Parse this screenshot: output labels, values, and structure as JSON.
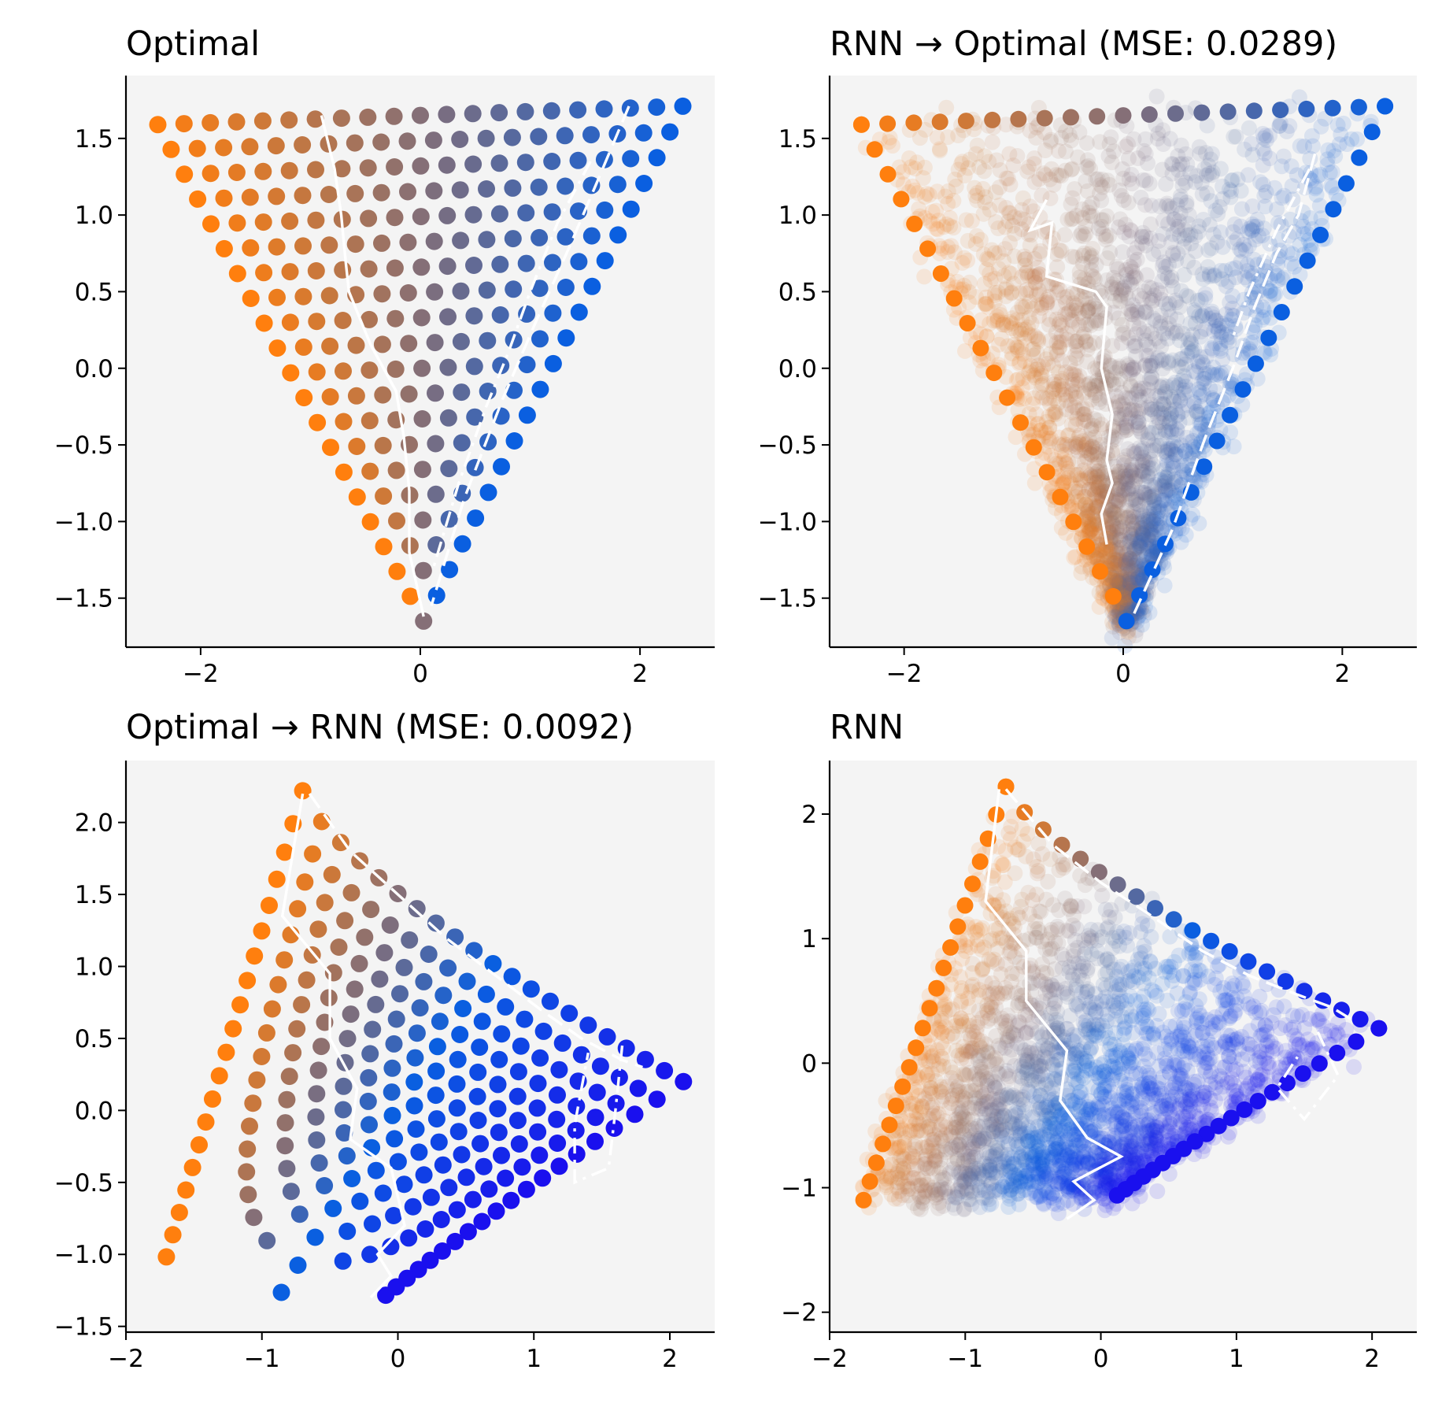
{
  "chart_data": [
    {
      "id": "optimal",
      "type": "scatter",
      "title": "Optimal",
      "xlabel": "",
      "ylabel": "",
      "xlim": [
        -2.68,
        2.68
      ],
      "ylim": [
        -1.82,
        1.91
      ],
      "xticks": [
        -2,
        0,
        2
      ],
      "xtick_labels": [
        "−2",
        "0",
        "2"
      ],
      "yticks": [
        -1.5,
        -1.0,
        -0.5,
        0.0,
        0.5,
        1.0,
        1.5
      ],
      "ytick_labels": [
        "−1.5",
        "−1.0",
        "−0.5",
        "0.0",
        "0.5",
        "1.0",
        "1.5"
      ],
      "grid": false,
      "color_endpoints": [
        "#ff7f0e",
        "#0a5fe0"
      ],
      "mapping": "triangle",
      "scatter_style": "grid",
      "grid_steps": 20,
      "triangle_vertices": {
        "top_left": [
          -2.39,
          1.59
        ],
        "top_right": [
          2.39,
          1.71
        ],
        "bottom": [
          0.03,
          -1.65
        ]
      },
      "solid_path": [
        [
          -0.9,
          1.65
        ],
        [
          -0.78,
          1.3
        ],
        [
          -0.72,
          1.0
        ],
        [
          -0.68,
          0.7
        ],
        [
          -0.65,
          0.5
        ],
        [
          -0.45,
          0.15
        ],
        [
          -0.22,
          -0.15
        ],
        [
          -0.15,
          -0.45
        ],
        [
          -0.1,
          -0.8
        ],
        [
          -0.1,
          -1.2
        ],
        [
          0.03,
          -1.62
        ]
      ],
      "dashed_path": [
        [
          1.9,
          1.71
        ],
        [
          1.6,
          1.2
        ],
        [
          1.35,
          0.78
        ],
        [
          1.05,
          0.3
        ],
        [
          0.75,
          -0.2
        ],
        [
          0.4,
          -0.85
        ],
        [
          0.1,
          -1.55
        ]
      ],
      "dashdot_path": [
        [
          1.55,
          1.35
        ],
        [
          1.25,
          0.95
        ],
        [
          1.0,
          0.5
        ],
        [
          0.8,
          0.1
        ],
        [
          0.6,
          -0.25
        ],
        [
          0.35,
          -0.75
        ],
        [
          0.12,
          -1.3
        ]
      ]
    },
    {
      "id": "rnn-to-optimal",
      "type": "scatter",
      "title": "RNN → Optimal (MSE: 0.0289)",
      "mse": 0.0289,
      "xlabel": "",
      "ylabel": "",
      "xlim": [
        -2.68,
        2.68
      ],
      "ylim": [
        -1.82,
        1.91
      ],
      "xticks": [
        -2,
        0,
        2
      ],
      "xtick_labels": [
        "−2",
        "0",
        "2"
      ],
      "yticks": [
        -1.5,
        -1.0,
        -0.5,
        0.0,
        0.5,
        1.0,
        1.5
      ],
      "ytick_labels": [
        "−1.5",
        "−1.0",
        "−0.5",
        "0.0",
        "0.5",
        "1.0",
        "1.5"
      ],
      "grid": false,
      "color_endpoints": [
        "#ff7f0e",
        "#0a5fe0"
      ],
      "mapping": "triangle",
      "scatter_style": "edges_and_cloud",
      "grid_steps": 20,
      "triangle_vertices": {
        "top_left": [
          -2.39,
          1.59
        ],
        "top_right": [
          2.39,
          1.71
        ],
        "bottom": [
          0.03,
          -1.65
        ]
      },
      "solid_path": [
        [
          -0.7,
          1.1
        ],
        [
          -0.85,
          0.9
        ],
        [
          -0.65,
          0.95
        ],
        [
          -0.7,
          0.6
        ],
        [
          -0.25,
          0.5
        ],
        [
          -0.15,
          0.4
        ],
        [
          -0.2,
          0.0
        ],
        [
          -0.1,
          -0.3
        ],
        [
          -0.15,
          -0.6
        ],
        [
          -0.1,
          -0.75
        ],
        [
          -0.2,
          -0.95
        ],
        [
          -0.15,
          -1.15
        ]
      ],
      "dashed_path": [
        [
          1.75,
          1.4
        ],
        [
          1.6,
          1.0
        ],
        [
          1.4,
          0.75
        ],
        [
          1.2,
          0.4
        ],
        [
          1.0,
          0.0
        ],
        [
          0.75,
          -0.45
        ],
        [
          0.45,
          -1.05
        ],
        [
          0.1,
          -1.6
        ]
      ],
      "dashdot_path": [
        [
          1.7,
          1.3
        ],
        [
          1.4,
          0.9
        ],
        [
          1.15,
          0.5
        ],
        [
          1.0,
          0.2
        ]
      ]
    },
    {
      "id": "optimal-to-rnn",
      "type": "scatter",
      "title": "Optimal → RNN (MSE: 0.0092)",
      "mse": 0.0092,
      "xlabel": "",
      "ylabel": "",
      "xlim": [
        -2.0,
        2.33
      ],
      "ylim": [
        -1.54,
        2.43
      ],
      "xticks": [
        -2,
        -1,
        0,
        1,
        2
      ],
      "xtick_labels": [
        "−2",
        "−1",
        "0",
        "1",
        "2"
      ],
      "yticks": [
        -1.5,
        -1.0,
        -0.5,
        0.0,
        0.5,
        1.0,
        1.5,
        2.0
      ],
      "ytick_labels": [
        "−1.5",
        "−1.0",
        "−0.5",
        "0.0",
        "0.5",
        "1.0",
        "1.5",
        "2.0"
      ],
      "grid": false,
      "color_endpoints": [
        "#ff7f0e",
        "#0a5fe0",
        "#1a10ee"
      ],
      "mapping": "rnn",
      "scatter_style": "grid",
      "grid_steps": 20,
      "rnn_corners": {
        "top": [
          -0.7,
          2.22
        ],
        "bottom_left": [
          -1.75,
          -1.17
        ],
        "bottom_right": [
          -0.3,
          -1.35
        ],
        "top_right": [
          2.1,
          0.2
        ],
        "center": [
          0.2,
          -1.3
        ]
      },
      "solid_path": [
        [
          -0.7,
          2.2
        ],
        [
          -0.85,
          1.35
        ],
        [
          -0.5,
          0.95
        ],
        [
          -0.5,
          0.5
        ],
        [
          -0.3,
          0.15
        ],
        [
          -0.35,
          -0.2
        ],
        [
          -0.05,
          -0.4
        ],
        [
          0.05,
          -0.8
        ],
        [
          -0.15,
          -1.0
        ],
        [
          -0.05,
          -1.15
        ],
        [
          -0.2,
          -1.3
        ]
      ],
      "dashed_path": [
        [
          -0.65,
          2.2
        ],
        [
          -0.35,
          1.8
        ],
        [
          0.0,
          1.5
        ],
        [
          0.35,
          1.2
        ],
        [
          0.7,
          0.95
        ],
        [
          1.05,
          0.7
        ],
        [
          1.35,
          0.5
        ],
        [
          1.65,
          0.35
        ],
        [
          1.8,
          0.3
        ]
      ],
      "dashdot_path": [
        [
          1.65,
          0.45
        ],
        [
          1.6,
          0.0
        ],
        [
          1.55,
          -0.4
        ],
        [
          1.3,
          -0.5
        ],
        [
          1.3,
          -0.1
        ],
        [
          1.4,
          0.4
        ]
      ]
    },
    {
      "id": "rnn",
      "type": "scatter",
      "title": "RNN",
      "xlabel": "",
      "ylabel": "",
      "xlim": [
        -2.0,
        2.33
      ],
      "ylim": [
        -2.16,
        2.43
      ],
      "xticks": [
        -2,
        -1,
        0,
        1,
        2
      ],
      "xtick_labels": [
        "−2",
        "−1",
        "0",
        "1",
        "2"
      ],
      "yticks": [
        -2,
        -1,
        0,
        1,
        2
      ],
      "ytick_labels": [
        "−2",
        "−1",
        "0",
        "1",
        "2"
      ],
      "grid": false,
      "color_endpoints": [
        "#ff7f0e",
        "#0a5fe0",
        "#1a10ee"
      ],
      "mapping": "rnn",
      "scatter_style": "edges_and_cloud",
      "grid_steps": 20,
      "rnn_corners": {
        "top": [
          -0.7,
          2.22
        ],
        "bottom_left": [
          -1.75,
          -1.1
        ],
        "bottom_right": [
          -0.1,
          -1.1
        ],
        "top_right": [
          2.05,
          0.28
        ],
        "center": [
          0.7,
          -0.9
        ]
      },
      "solid_path": [
        [
          -0.75,
          2.2
        ],
        [
          -0.85,
          1.3
        ],
        [
          -0.55,
          0.9
        ],
        [
          -0.55,
          0.5
        ],
        [
          -0.25,
          0.1
        ],
        [
          -0.3,
          -0.3
        ],
        [
          -0.1,
          -0.6
        ],
        [
          0.15,
          -0.75
        ],
        [
          -0.2,
          -0.95
        ],
        [
          -0.05,
          -1.1
        ],
        [
          -0.25,
          -1.25
        ]
      ],
      "dashed_path": [
        [
          -0.7,
          2.2
        ],
        [
          -0.35,
          1.75
        ],
        [
          0.0,
          1.45
        ],
        [
          0.35,
          1.2
        ],
        [
          0.75,
          0.9
        ],
        [
          1.1,
          0.7
        ],
        [
          1.45,
          0.55
        ],
        [
          1.7,
          0.45
        ],
        [
          1.85,
          0.35
        ]
      ],
      "dashdot_path": [
        [
          1.6,
          0.25
        ],
        [
          1.75,
          -0.1
        ],
        [
          1.5,
          -0.45
        ],
        [
          1.3,
          -0.2
        ],
        [
          1.45,
          0.05
        ]
      ]
    }
  ]
}
